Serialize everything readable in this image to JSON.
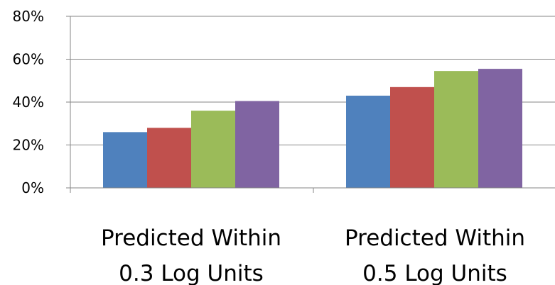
{
  "chart_data": {
    "type": "bar",
    "categories": [
      [
        "Predicted Within",
        "0.3 Log Units"
      ],
      [
        "Predicted Within",
        "0.5 Log Units"
      ]
    ],
    "series": [
      {
        "values": [
          0.26,
          0.43
        ],
        "color": "#4F81BD"
      },
      {
        "values": [
          0.28,
          0.47
        ],
        "color": "#C0504D"
      },
      {
        "values": [
          0.36,
          0.545
        ],
        "color": "#9BBB59"
      },
      {
        "values": [
          0.405,
          0.555
        ],
        "color": "#8064A2"
      }
    ],
    "y_ticks": [
      "0%",
      "20%",
      "40%",
      "60%",
      "80%"
    ],
    "ylim": [
      0,
      0.8
    ],
    "grid": true,
    "legend": "none"
  }
}
